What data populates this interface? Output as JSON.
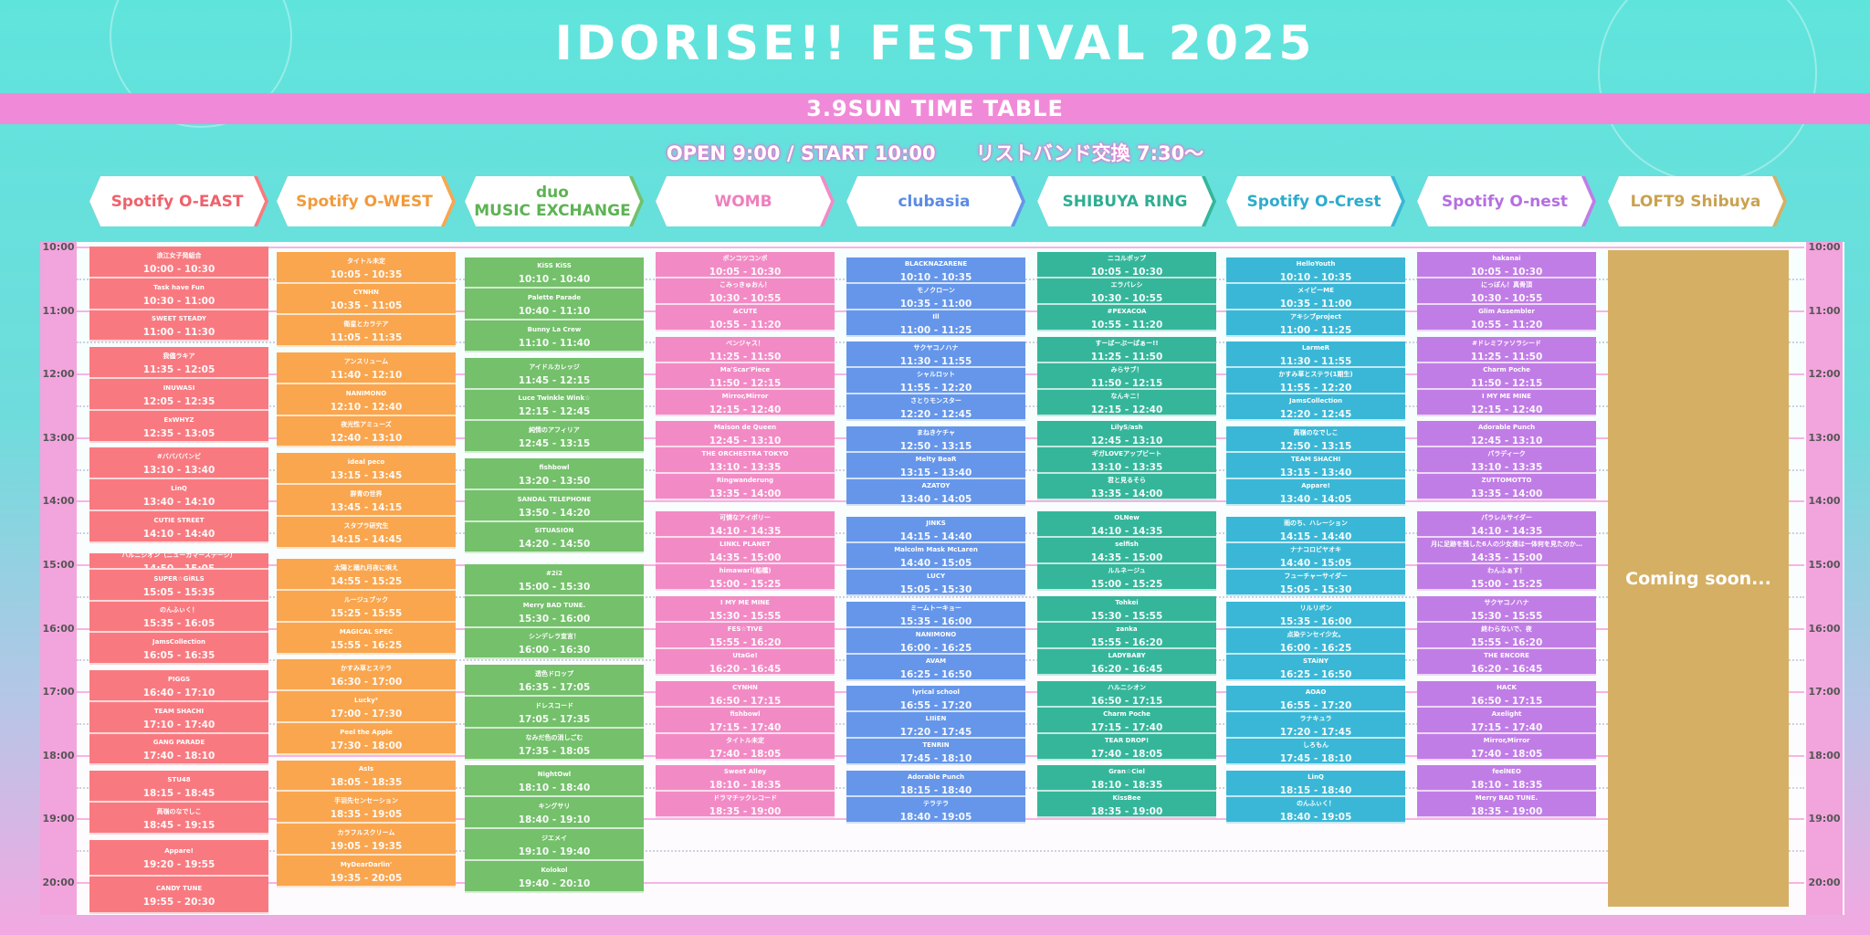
{
  "header": {
    "title": "IDORISE!! FESTIVAL 2025",
    "date_banner": "3.9SUN TIME TABLE",
    "open_start": "OPEN 9:00 / START 10:00",
    "wristband": "リストバンド交換 7:30〜"
  },
  "time_labels": [
    "10:00",
    "11:00",
    "12:00",
    "13:00",
    "14:00",
    "15:00",
    "16:00",
    "17:00",
    "18:00",
    "19:00",
    "20:00"
  ],
  "stages": [
    {
      "name": "Spotify O-EAST",
      "color": "#f87a80",
      "text_color": "#f0616b",
      "acts": [
        {
          "name": "浪江女子発組合",
          "time": "10:00 - 10:30"
        },
        {
          "name": "Task have Fun",
          "time": "10:30 - 11:00"
        },
        {
          "name": "SWEET STEADY",
          "time": "11:00 - 11:30"
        },
        {
          "name": "我儘ラキア",
          "time": "11:35 - 12:05"
        },
        {
          "name": "INUWASI",
          "time": "12:05 - 12:35"
        },
        {
          "name": "ExWHYZ",
          "time": "12:35 - 13:05"
        },
        {
          "name": "#ババババンビ",
          "time": "13:10 - 13:40"
        },
        {
          "name": "LinQ",
          "time": "13:40 - 14:10"
        },
        {
          "name": "CUTIE STREET",
          "time": "14:10 - 14:40"
        },
        {
          "name": "ハルニシオン（ニューカマーステージ）",
          "time": "14:50 - 15:05"
        },
        {
          "name": "SUPER☆GiRLS",
          "time": "15:05 - 15:35"
        },
        {
          "name": "のんふぃく！",
          "time": "15:35 - 16:05"
        },
        {
          "name": "JamsCollection",
          "time": "16:05 - 16:35"
        },
        {
          "name": "PIGGS",
          "time": "16:40 - 17:10"
        },
        {
          "name": "TEAM SHACHI",
          "time": "17:10 - 17:40"
        },
        {
          "name": "GANG PARADE",
          "time": "17:40 - 18:10"
        },
        {
          "name": "STU48",
          "time": "18:15 - 18:45"
        },
        {
          "name": "高嶺のなでしこ",
          "time": "18:45 - 19:15"
        },
        {
          "name": "Appare!",
          "time": "19:20 - 19:55"
        },
        {
          "name": "CANDY TUNE",
          "time": "19:55 - 20:30"
        }
      ]
    },
    {
      "name": "Spotify O-WEST",
      "color": "#f9a64f",
      "text_color": "#f39a3a",
      "acts": [
        {
          "name": "タイトル未定",
          "time": "10:05 - 10:35"
        },
        {
          "name": "CYNHN",
          "time": "10:35 - 11:05"
        },
        {
          "name": "衛星とカラテア",
          "time": "11:05 - 11:35"
        },
        {
          "name": "アンスリューム",
          "time": "11:40 - 12:10"
        },
        {
          "name": "NANIMONO",
          "time": "12:10 - 12:40"
        },
        {
          "name": "夜光性アミューズ",
          "time": "12:40 - 13:10"
        },
        {
          "name": "ideal peco",
          "time": "13:15 - 13:45"
        },
        {
          "name": "群青の世界",
          "time": "13:45 - 14:15"
        },
        {
          "name": "スタプラ研究生",
          "time": "14:15 - 14:45"
        },
        {
          "name": "太陽と踊れ月夜に唄え",
          "time": "14:55 - 15:25"
        },
        {
          "name": "ルージュブック",
          "time": "15:25 - 15:55"
        },
        {
          "name": "MAGICAL SPEC",
          "time": "15:55 - 16:25"
        },
        {
          "name": "かすみ草とステラ",
          "time": "16:30 - 17:00"
        },
        {
          "name": "Lucky²",
          "time": "17:00 - 17:30"
        },
        {
          "name": "Peel the Apple",
          "time": "17:30 - 18:00"
        },
        {
          "name": "AsIs",
          "time": "18:05 - 18:35"
        },
        {
          "name": "手羽先センセーション",
          "time": "18:35 - 19:05"
        },
        {
          "name": "カラフルスクリーム",
          "time": "19:05 - 19:35"
        },
        {
          "name": "MyDearDarlin'",
          "time": "19:35 - 20:05"
        }
      ]
    },
    {
      "name": "duo MUSIC EXCHANGE",
      "color": "#74c06b",
      "text_color": "#5db354",
      "acts": [
        {
          "name": "KiSS KiSS",
          "time": "10:10 - 10:40"
        },
        {
          "name": "Palette Parade",
          "time": "10:40 - 11:10"
        },
        {
          "name": "Bunny La Crew",
          "time": "11:10 - 11:40"
        },
        {
          "name": "アイドルカレッジ",
          "time": "11:45 - 12:15"
        },
        {
          "name": "Luce Twinkle Wink☆",
          "time": "12:15 - 12:45"
        },
        {
          "name": "純情のアフィリア",
          "time": "12:45 - 13:15"
        },
        {
          "name": "fishbowl",
          "time": "13:20 - 13:50"
        },
        {
          "name": "SANDAL TELEPHONE",
          "time": "13:50 - 14:20"
        },
        {
          "name": "SITUASION",
          "time": "14:20 - 14:50"
        },
        {
          "name": "#2i2",
          "time": "15:00 - 15:30"
        },
        {
          "name": "Merry BAD TUNE.",
          "time": "15:30 - 16:00"
        },
        {
          "name": "シンデレラ宣言！",
          "time": "16:00 - 16:30"
        },
        {
          "name": "透色ドロップ",
          "time": "16:35 - 17:05"
        },
        {
          "name": "ドレスコード",
          "time": "17:05 - 17:35"
        },
        {
          "name": "なみだ色の消しごむ",
          "time": "17:35 - 18:05"
        },
        {
          "name": "NightOwl",
          "time": "18:10 - 18:40"
        },
        {
          "name": "キングサリ",
          "time": "18:40 - 19:10"
        },
        {
          "name": "ジエメイ",
          "time": "19:10 - 19:40"
        },
        {
          "name": "Kolokol",
          "time": "19:40 - 20:10"
        }
      ]
    },
    {
      "name": "WOMB",
      "color": "#f28bc5",
      "text_color": "#ee7fbd",
      "acts": [
        {
          "name": "ポンコツコンポ",
          "time": "10:05 - 10:30"
        },
        {
          "name": "こみっきゅおん！",
          "time": "10:30 - 10:55"
        },
        {
          "name": "&CUTE",
          "time": "10:55 - 11:20"
        },
        {
          "name": "ベンジャス！",
          "time": "11:25 - 11:50"
        },
        {
          "name": "Ma'Scar'Piece",
          "time": "11:50 - 12:15"
        },
        {
          "name": "Mirror,Mirror",
          "time": "12:15 - 12:40"
        },
        {
          "name": "Maison de Queen",
          "time": "12:45 - 13:10"
        },
        {
          "name": "THE ORCHESTRA TOKYO",
          "time": "13:10 - 13:35"
        },
        {
          "name": "Ringwanderung",
          "time": "13:35 - 14:00"
        },
        {
          "name": "可憐なアイボリー",
          "time": "14:10 - 14:35"
        },
        {
          "name": "LINKL PLANET",
          "time": "14:35 - 15:00"
        },
        {
          "name": "himawari(船橋)",
          "time": "15:00 - 15:25"
        },
        {
          "name": "I MY ME MINE",
          "time": "15:30 - 15:55"
        },
        {
          "name": "FES☆TIVE",
          "time": "15:55 - 16:20"
        },
        {
          "name": "UtaGe!",
          "time": "16:20 - 16:45"
        },
        {
          "name": "CYNHN",
          "time": "16:50 - 17:15"
        },
        {
          "name": "fishbowl",
          "time": "17:15 - 17:40"
        },
        {
          "name": "タイトル未定",
          "time": "17:40 - 18:05"
        },
        {
          "name": "Sweet Alley",
          "time": "18:10 - 18:35"
        },
        {
          "name": "ドラマチックレコード",
          "time": "18:35 - 19:00"
        }
      ]
    },
    {
      "name": "clubasia",
      "color": "#6596ea",
      "text_color": "#5b8be6",
      "acts": [
        {
          "name": "BLACKNAZARENE",
          "time": "10:10 - 10:35"
        },
        {
          "name": "モノクローン",
          "time": "10:35 - 11:00"
        },
        {
          "name": "Ill",
          "time": "11:00 - 11:25"
        },
        {
          "name": "サクヤコノハナ",
          "time": "11:30 - 11:55"
        },
        {
          "name": "シャルロット",
          "time": "11:55 - 12:20"
        },
        {
          "name": "さとりモンスター",
          "time": "12:20 - 12:45"
        },
        {
          "name": "まねきケチャ",
          "time": "12:50 - 13:15"
        },
        {
          "name": "Melty BeaR",
          "time": "13:15 - 13:40"
        },
        {
          "name": "AZATOY",
          "time": "13:40 - 14:05"
        },
        {
          "name": "JINKS",
          "time": "14:15 - 14:40"
        },
        {
          "name": "Malcolm Mask McLaren",
          "time": "14:40 - 15:05"
        },
        {
          "name": "LUCY",
          "time": "15:05 - 15:30"
        },
        {
          "name": "ミームトーキョー",
          "time": "15:35 - 16:00"
        },
        {
          "name": "NANIMONO",
          "time": "16:00 - 16:25"
        },
        {
          "name": "AVAM",
          "time": "16:25 - 16:50"
        },
        {
          "name": "lyrical school",
          "time": "16:55 - 17:20"
        },
        {
          "name": "LIIiEN",
          "time": "17:20 - 17:45"
        },
        {
          "name": "TENRIN",
          "time": "17:45 - 18:10"
        },
        {
          "name": "Adorable Punch",
          "time": "18:15 - 18:40"
        },
        {
          "name": "テラテラ",
          "time": "18:40 - 19:05"
        }
      ]
    },
    {
      "name": "SHIBUYA RING",
      "color": "#35b69b",
      "text_color": "#2fae92",
      "acts": [
        {
          "name": "ニコルポップ",
          "time": "10:05 - 10:30"
        },
        {
          "name": "エラバレシ",
          "time": "10:30 - 10:55"
        },
        {
          "name": "#PEXACOA",
          "time": "10:55 - 11:20"
        },
        {
          "name": "すーぱーぷーぱぁー!!",
          "time": "11:25 - 11:50"
        },
        {
          "name": "みらサブ！",
          "time": "11:50 - 12:15"
        },
        {
          "name": "なんキニ！",
          "time": "12:15 - 12:40"
        },
        {
          "name": "LilyS/ash",
          "time": "12:45 - 13:10"
        },
        {
          "name": "ギガLOVEアップビート",
          "time": "13:10 - 13:35"
        },
        {
          "name": "君と見るそら",
          "time": "13:35 - 14:00"
        },
        {
          "name": "OLNew",
          "time": "14:10 - 14:35"
        },
        {
          "name": "selfish",
          "time": "14:35 - 15:00"
        },
        {
          "name": "ルルネージュ",
          "time": "15:00 - 15:25"
        },
        {
          "name": "Tohkei",
          "time": "15:30 - 15:55"
        },
        {
          "name": "zanka",
          "time": "15:55 - 16:20"
        },
        {
          "name": "LADYBABY",
          "time": "16:20 - 16:45"
        },
        {
          "name": "ハルニシオン",
          "time": "16:50 - 17:15"
        },
        {
          "name": "Charm Poche",
          "time": "17:15 - 17:40"
        },
        {
          "name": "TEAR DROP!",
          "time": "17:40 - 18:05"
        },
        {
          "name": "Gran☆Ciel",
          "time": "18:10 - 18:35"
        },
        {
          "name": "KissBee",
          "time": "18:35 - 19:00"
        }
      ]
    },
    {
      "name": "Spotify O-Crest",
      "color": "#3ab7d6",
      "text_color": "#2eaccc",
      "acts": [
        {
          "name": "HelloYouth",
          "time": "10:10 - 10:35"
        },
        {
          "name": "メイビーME",
          "time": "10:35 - 11:00"
        },
        {
          "name": "アキシブproject",
          "time": "11:00 - 11:25"
        },
        {
          "name": "LarmeR",
          "time": "11:30 - 11:55"
        },
        {
          "name": "かすみ草とステラ(1期生)",
          "time": "11:55 - 12:20"
        },
        {
          "name": "JamsCollection",
          "time": "12:20 - 12:45"
        },
        {
          "name": "高嶺のなでしこ",
          "time": "12:50 - 13:15"
        },
        {
          "name": "TEAM SHACHI",
          "time": "13:15 - 13:40"
        },
        {
          "name": "Appare!",
          "time": "13:40 - 14:05"
        },
        {
          "name": "雨のち、ハレーション",
          "time": "14:15 - 14:40"
        },
        {
          "name": "ナナコロビヤオキ",
          "time": "14:40 - 15:05"
        },
        {
          "name": "フューチャーサイダー",
          "time": "15:05 - 15:30"
        },
        {
          "name": "リルリボン",
          "time": "15:35 - 16:00"
        },
        {
          "name": "点染テンセイ少女。",
          "time": "16:00 - 16:25"
        },
        {
          "name": "STAiNY",
          "time": "16:25 - 16:50"
        },
        {
          "name": "AOAO",
          "time": "16:55 - 17:20"
        },
        {
          "name": "ラナキュラ",
          "time": "17:20 - 17:45"
        },
        {
          "name": "しろもん",
          "time": "17:45 - 18:10"
        },
        {
          "name": "LinQ",
          "time": "18:15 - 18:40"
        },
        {
          "name": "のんふぃく！",
          "time": "18:40 - 19:05"
        }
      ]
    },
    {
      "name": "Spotify O-nest",
      "color": "#c17de6",
      "text_color": "#b56fe0",
      "acts": [
        {
          "name": "hakanai",
          "time": "10:05 - 10:30"
        },
        {
          "name": "にっぽん！真骨頂",
          "time": "10:30 - 10:55"
        },
        {
          "name": "Glim Assembler",
          "time": "10:55 - 11:20"
        },
        {
          "name": "#ドレミファソラシード",
          "time": "11:25 - 11:50"
        },
        {
          "name": "Charm Poche",
          "time": "11:50 - 12:15"
        },
        {
          "name": "I MY ME MINE",
          "time": "12:15 - 12:40"
        },
        {
          "name": "Adorable Punch",
          "time": "12:45 - 13:10"
        },
        {
          "name": "パラディーク",
          "time": "13:10 - 13:35"
        },
        {
          "name": "ZUTTOMOTTO",
          "time": "13:35 - 14:00"
        },
        {
          "name": "パラレルサイダー",
          "time": "14:10 - 14:35"
        },
        {
          "name": "月に足跡を残した6人の少女達は一体何を見たのか…",
          "time": "14:35 - 15:00"
        },
        {
          "name": "わんふぁす！",
          "time": "15:00 - 15:25"
        },
        {
          "name": "サクヤコノハナ",
          "time": "15:30 - 15:55"
        },
        {
          "name": "終わらないで、夜",
          "time": "15:55 - 16:20"
        },
        {
          "name": "THE ENCORE",
          "time": "16:20 - 16:45"
        },
        {
          "name": "HACK",
          "time": "16:50 - 17:15"
        },
        {
          "name": "Axelight",
          "time": "17:15 - 17:40"
        },
        {
          "name": "Mirror,Mirror",
          "time": "17:40 - 18:05"
        },
        {
          "name": "feelNEO",
          "time": "18:10 - 18:35"
        },
        {
          "name": "Merry BAD TUNE.",
          "time": "18:35 - 19:00"
        }
      ]
    },
    {
      "name": "LOFT9 Shibuya",
      "color": "#d5b064",
      "text_color": "#c9a250",
      "acts": []
    }
  ],
  "loft9_placeholder": "Coming soon..."
}
